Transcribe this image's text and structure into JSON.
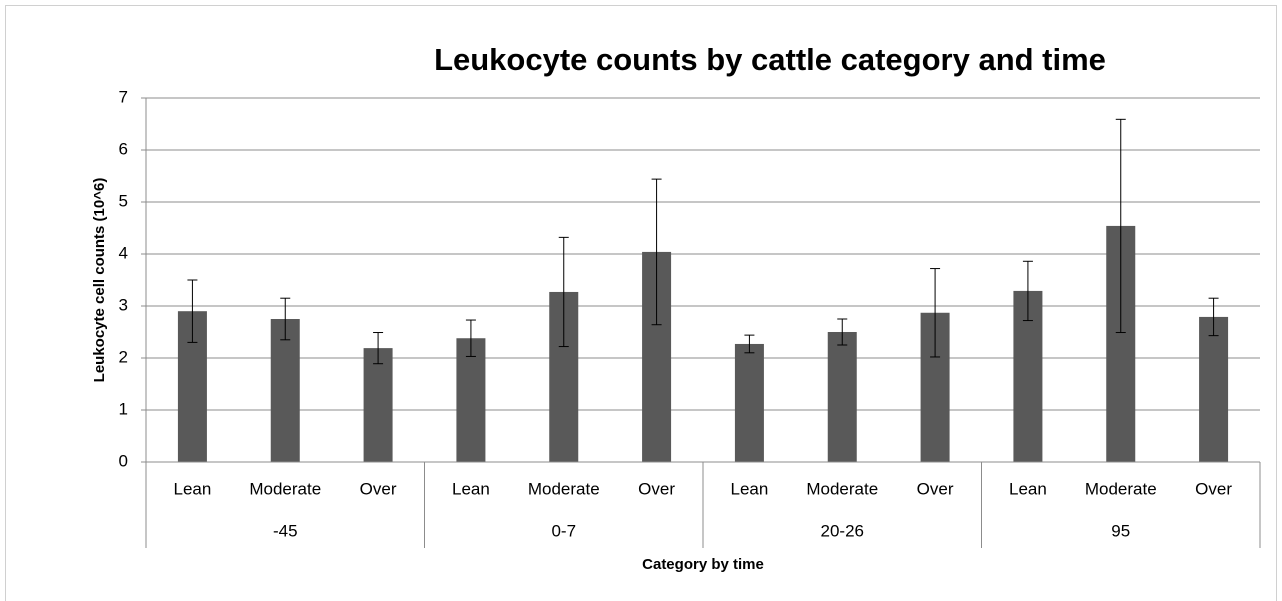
{
  "chart_data": {
    "type": "bar",
    "title": "Leukocyte counts by cattle category and time",
    "y_label": "Leukocyte cell counts (10^6)",
    "x_label": "Category by time",
    "color": "#595959",
    "ylim": [
      0,
      7
    ],
    "yticks": [
      0,
      1,
      2,
      3,
      4,
      5,
      6,
      7
    ],
    "grid": true,
    "groups": [
      {
        "name": "-45",
        "categories": [
          "Lean",
          "Moderate",
          "Over"
        ],
        "values": [
          2.9,
          2.75,
          2.19
        ],
        "errors": [
          0.6,
          0.4,
          0.3
        ]
      },
      {
        "name": "0-7",
        "categories": [
          "Lean",
          "Moderate",
          "Over"
        ],
        "values": [
          2.38,
          3.27,
          4.04
        ],
        "errors": [
          0.35,
          1.05,
          1.4
        ]
      },
      {
        "name": "20-26",
        "categories": [
          "Lean",
          "Moderate",
          "Over"
        ],
        "values": [
          2.27,
          2.5,
          2.87
        ],
        "errors": [
          0.17,
          0.25,
          0.85
        ]
      },
      {
        "name": "95",
        "categories": [
          "Lean",
          "Moderate",
          "Over"
        ],
        "values": [
          3.29,
          4.54,
          2.79
        ],
        "errors": [
          0.57,
          2.05,
          0.36
        ]
      }
    ]
  }
}
